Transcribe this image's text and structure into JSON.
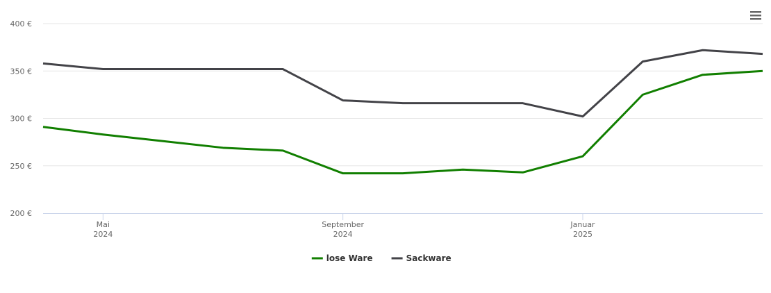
{
  "chart_data": {
    "type": "line",
    "x": [
      "2024-04",
      "2024-05",
      "2024-06",
      "2024-07",
      "2024-08",
      "2024-09",
      "2024-10",
      "2024-11",
      "2024-12",
      "2025-01",
      "2025-02",
      "2025-03",
      "2025-04"
    ],
    "series": [
      {
        "name": "lose Ware",
        "color": "#117f00",
        "values": [
          291,
          283,
          276,
          269,
          266,
          242,
          242,
          246,
          243,
          260,
          325,
          346,
          350
        ]
      },
      {
        "name": "Sackware",
        "color": "#434348",
        "values": [
          358,
          352,
          352,
          352,
          352,
          319,
          316,
          316,
          316,
          302,
          360,
          372,
          368
        ]
      }
    ],
    "xlim": [
      "2024-04",
      "2025-04"
    ],
    "xticks": [
      {
        "value": "2024-05",
        "label": "Mai 2024"
      },
      {
        "value": "2024-09",
        "label": "September 2024"
      },
      {
        "value": "2025-01",
        "label": "Januar 2025"
      }
    ],
    "ylim": [
      200,
      400
    ],
    "yticks": [
      {
        "value": 200,
        "label": "200 €"
      },
      {
        "value": 250,
        "label": "250 €"
      },
      {
        "value": 300,
        "label": "300 €"
      },
      {
        "value": 350,
        "label": "350 €"
      },
      {
        "value": 400,
        "label": "400 €"
      }
    ],
    "grid": true,
    "legend": "bottom"
  }
}
